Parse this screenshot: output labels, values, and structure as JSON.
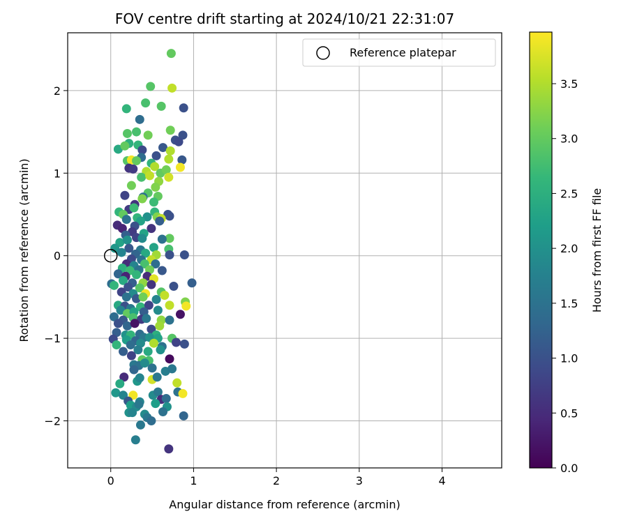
{
  "chart_data": {
    "type": "scatter",
    "title": "FOV centre drift starting at 2024/10/21 22:31:07",
    "xlabel": "Angular distance from reference (arcmin)",
    "ylabel": "Rotation from reference (arcmin)",
    "xlim": [
      -0.52,
      4.72
    ],
    "ylim": [
      -2.57,
      2.7
    ],
    "xticks": [
      0,
      1,
      2,
      3,
      4
    ],
    "yticks": [
      -2,
      -1,
      0,
      1,
      2
    ],
    "grid": true,
    "legend": {
      "placement": "top-right",
      "entries": [
        "Reference platepar"
      ]
    },
    "reference_point": {
      "name": "Reference platepar",
      "x": 0,
      "y": 0
    },
    "colorbar": {
      "label": "Hours from first FF file",
      "colormap": "viridis",
      "range": [
        0.0,
        3.97
      ],
      "ticks": [
        0.0,
        0.5,
        1.0,
        1.5,
        2.0,
        2.5,
        3.0,
        3.5
      ]
    },
    "colormap_stops": [
      "#440154",
      "#482878",
      "#3e4989",
      "#31688e",
      "#26828e",
      "#1f9e89",
      "#35b779",
      "#6ece58",
      "#b5de2b",
      "#fde725"
    ],
    "points": [
      [
        0.73,
        2.45,
        3.0
      ],
      [
        0.48,
        2.05,
        2.9
      ],
      [
        0.74,
        2.03,
        3.6
      ],
      [
        0.42,
        1.85,
        2.8
      ],
      [
        0.61,
        1.81,
        2.9
      ],
      [
        0.19,
        1.78,
        2.6
      ],
      [
        0.88,
        1.79,
        1.0
      ],
      [
        0.35,
        1.65,
        1.4
      ],
      [
        0.31,
        1.5,
        2.8
      ],
      [
        0.72,
        1.52,
        3.1
      ],
      [
        0.2,
        1.48,
        2.9
      ],
      [
        0.45,
        1.46,
        3.1
      ],
      [
        0.87,
        1.46,
        1.0
      ],
      [
        0.78,
        1.4,
        1.0
      ],
      [
        0.82,
        1.38,
        0.9
      ],
      [
        0.22,
        1.36,
        2.5
      ],
      [
        0.09,
        1.29,
        2.4
      ],
      [
        0.33,
        1.34,
        2.6
      ],
      [
        0.17,
        1.33,
        3.0
      ],
      [
        0.38,
        1.28,
        0.9
      ],
      [
        0.63,
        1.31,
        1.1
      ],
      [
        0.72,
        1.27,
        3.5
      ],
      [
        0.55,
        1.21,
        1.0
      ],
      [
        0.37,
        1.19,
        1.4
      ],
      [
        0.86,
        1.16,
        1.1
      ],
      [
        0.2,
        1.15,
        2.9
      ],
      [
        0.25,
        1.16,
        3.9
      ],
      [
        0.31,
        1.15,
        3.0
      ],
      [
        0.49,
        1.12,
        2.6
      ],
      [
        0.7,
        1.17,
        3.5
      ],
      [
        0.53,
        1.08,
        3.5
      ],
      [
        0.22,
        1.06,
        0.6
      ],
      [
        0.27,
        1.05,
        0.7
      ],
      [
        0.43,
        1.02,
        3.5
      ],
      [
        0.6,
        1.0,
        3.0
      ],
      [
        0.84,
        1.07,
        3.9
      ],
      [
        0.67,
        1.04,
        3.1
      ],
      [
        0.37,
        0.95,
        2.8
      ],
      [
        0.47,
        0.97,
        3.6
      ],
      [
        0.7,
        0.95,
        3.7
      ],
      [
        0.58,
        0.9,
        3.3
      ],
      [
        0.25,
        0.85,
        3.1
      ],
      [
        0.54,
        0.83,
        3.2
      ],
      [
        0.45,
        0.76,
        2.9
      ],
      [
        0.17,
        0.73,
        0.8
      ],
      [
        0.39,
        0.71,
        1.5
      ],
      [
        0.38,
        0.69,
        3.2
      ],
      [
        0.57,
        0.72,
        3.0
      ],
      [
        0.52,
        0.65,
        2.7
      ],
      [
        0.29,
        0.62,
        0.6
      ],
      [
        0.22,
        0.56,
        0.7
      ],
      [
        0.28,
        0.58,
        2.7
      ],
      [
        0.1,
        0.53,
        2.6
      ],
      [
        0.15,
        0.5,
        3.0
      ],
      [
        0.53,
        0.53,
        2.6
      ],
      [
        0.69,
        0.5,
        1.0
      ],
      [
        0.71,
        0.48,
        1.0
      ],
      [
        0.32,
        0.46,
        2.6
      ],
      [
        0.56,
        0.47,
        3.2
      ],
      [
        0.61,
        0.45,
        3.6
      ],
      [
        0.44,
        0.47,
        2.0
      ],
      [
        0.19,
        0.44,
        1.5
      ],
      [
        0.36,
        0.42,
        2.3
      ],
      [
        0.59,
        0.42,
        1.2
      ],
      [
        0.08,
        0.37,
        0.5
      ],
      [
        0.14,
        0.33,
        0.4
      ],
      [
        0.29,
        0.36,
        1.0
      ],
      [
        0.49,
        0.33,
        0.6
      ],
      [
        0.26,
        0.29,
        0.7
      ],
      [
        0.4,
        0.27,
        2.3
      ],
      [
        0.18,
        0.25,
        1.2
      ],
      [
        0.31,
        0.22,
        0.8
      ],
      [
        0.71,
        0.21,
        3.0
      ],
      [
        0.11,
        0.16,
        2.3
      ],
      [
        0.2,
        0.19,
        2.0
      ],
      [
        0.38,
        0.21,
        1.9
      ],
      [
        0.62,
        0.2,
        1.5
      ],
      [
        0.05,
        0.09,
        2.1
      ],
      [
        0.22,
        0.09,
        1.1
      ],
      [
        0.36,
        0.07,
        1.6
      ],
      [
        0.52,
        0.1,
        2.3
      ],
      [
        0.7,
        0.08,
        2.8
      ],
      [
        0.13,
        0.04,
        1.8
      ],
      [
        0.3,
        0.02,
        1.3
      ],
      [
        0.42,
        0.03,
        2.4
      ],
      [
        0.55,
        0.01,
        3.4
      ],
      [
        0.71,
        0.01,
        1.0
      ],
      [
        0.89,
        0.01,
        1.0
      ],
      [
        0.25,
        -0.04,
        0.9
      ],
      [
        0.37,
        -0.05,
        1.5
      ],
      [
        0.49,
        -0.05,
        3.6
      ],
      [
        0.19,
        -0.1,
        0.5
      ],
      [
        0.28,
        -0.12,
        1.8
      ],
      [
        0.41,
        -0.1,
        2.8
      ],
      [
        0.54,
        -0.1,
        1.4
      ],
      [
        0.14,
        -0.15,
        2.5
      ],
      [
        0.23,
        -0.18,
        2.7
      ],
      [
        0.34,
        -0.17,
        1.5
      ],
      [
        0.47,
        -0.17,
        3.1
      ],
      [
        0.62,
        -0.18,
        1.1
      ],
      [
        0.09,
        -0.22,
        1.3
      ],
      [
        0.18,
        -0.25,
        0.4
      ],
      [
        0.31,
        -0.23,
        2.6
      ],
      [
        0.44,
        -0.25,
        0.5
      ],
      [
        0.52,
        -0.28,
        3.8
      ],
      [
        0.15,
        -0.3,
        2.4
      ],
      [
        0.26,
        -0.33,
        1.2
      ],
      [
        0.39,
        -0.33,
        3.3
      ],
      [
        0.01,
        -0.34,
        1.4
      ],
      [
        0.04,
        -0.36,
        2.6
      ],
      [
        0.21,
        -0.38,
        1.0
      ],
      [
        0.35,
        -0.39,
        2.9
      ],
      [
        0.49,
        -0.35,
        0.6
      ],
      [
        0.76,
        -0.37,
        1.0
      ],
      [
        0.98,
        -0.33,
        1.2
      ],
      [
        0.13,
        -0.44,
        0.8
      ],
      [
        0.27,
        -0.46,
        1.9
      ],
      [
        0.42,
        -0.46,
        3.9
      ],
      [
        0.61,
        -0.44,
        2.9
      ],
      [
        0.65,
        -0.48,
        3.6
      ],
      [
        0.19,
        -0.5,
        1.5
      ],
      [
        0.31,
        -0.52,
        1.1
      ],
      [
        0.39,
        -0.5,
        3.1
      ],
      [
        0.55,
        -0.53,
        1.8
      ],
      [
        0.09,
        -0.6,
        2.4
      ],
      [
        0.17,
        -0.61,
        1.0
      ],
      [
        0.24,
        -0.64,
        1.6
      ],
      [
        0.36,
        -0.62,
        2.6
      ],
      [
        0.46,
        -0.6,
        0.8
      ],
      [
        0.71,
        -0.6,
        3.6
      ],
      [
        0.9,
        -0.56,
        3.2
      ],
      [
        0.91,
        -0.61,
        3.9
      ],
      [
        0.12,
        -0.66,
        1.8
      ],
      [
        0.2,
        -0.7,
        3.0
      ],
      [
        0.28,
        -0.68,
        2.3
      ],
      [
        0.4,
        -0.68,
        1.2
      ],
      [
        0.57,
        -0.66,
        1.9
      ],
      [
        0.84,
        -0.71,
        0.2
      ],
      [
        0.04,
        -0.74,
        1.4
      ],
      [
        0.15,
        -0.78,
        1.1
      ],
      [
        0.27,
        -0.75,
        2.8
      ],
      [
        0.37,
        -0.77,
        0.7
      ],
      [
        0.43,
        -0.76,
        1.6
      ],
      [
        0.61,
        -0.78,
        3.3
      ],
      [
        0.71,
        -0.78,
        1.5
      ],
      [
        0.09,
        -0.82,
        1.0
      ],
      [
        0.2,
        -0.85,
        1.3
      ],
      [
        0.29,
        -0.82,
        0.2
      ],
      [
        0.49,
        -0.89,
        0.9
      ],
      [
        0.59,
        -0.85,
        3.4
      ],
      [
        0.07,
        -0.93,
        1.2
      ],
      [
        0.18,
        -0.96,
        2.0
      ],
      [
        0.24,
        -0.96,
        2.6
      ],
      [
        0.35,
        -0.95,
        1.4
      ],
      [
        0.55,
        -0.96,
        2.5
      ],
      [
        0.03,
        -1.01,
        0.9
      ],
      [
        0.19,
        -1.02,
        2.2
      ],
      [
        0.3,
        -1.03,
        1.3
      ],
      [
        0.4,
        -0.99,
        1.6
      ],
      [
        0.47,
        -0.99,
        2.0
      ],
      [
        0.57,
        -1.0,
        2.3
      ],
      [
        0.74,
        -1.0,
        2.9
      ],
      [
        0.89,
        -1.07,
        1.0
      ],
      [
        0.07,
        -1.08,
        2.6
      ],
      [
        0.24,
        -1.08,
        1.4
      ],
      [
        0.36,
        -1.06,
        1.9
      ],
      [
        0.52,
        -1.06,
        3.5
      ],
      [
        0.62,
        -1.1,
        1.5
      ],
      [
        0.79,
        -1.05,
        0.8
      ],
      [
        0.15,
        -1.16,
        1.2
      ],
      [
        0.33,
        -1.14,
        1.7
      ],
      [
        0.45,
        -1.16,
        2.4
      ],
      [
        0.6,
        -1.14,
        2.0
      ],
      [
        0.25,
        -1.21,
        0.8
      ],
      [
        0.38,
        -1.26,
        3.0
      ],
      [
        0.46,
        -1.27,
        2.8
      ],
      [
        0.71,
        -1.25,
        0.1
      ],
      [
        0.28,
        -1.32,
        1.6
      ],
      [
        0.34,
        -1.33,
        1.5
      ],
      [
        0.41,
        -1.3,
        1.9
      ],
      [
        0.5,
        -1.36,
        1.5
      ],
      [
        0.28,
        -1.38,
        1.3
      ],
      [
        0.66,
        -1.4,
        1.7
      ],
      [
        0.74,
        -1.37,
        1.6
      ],
      [
        0.16,
        -1.47,
        0.5
      ],
      [
        0.32,
        -1.52,
        2.1
      ],
      [
        0.35,
        -1.48,
        1.8
      ],
      [
        0.5,
        -1.5,
        3.7
      ],
      [
        0.56,
        -1.47,
        1.6
      ],
      [
        0.8,
        -1.54,
        3.6
      ],
      [
        0.11,
        -1.55,
        2.4
      ],
      [
        0.06,
        -1.66,
        2.1
      ],
      [
        0.15,
        -1.69,
        1.8
      ],
      [
        0.27,
        -1.69,
        3.9
      ],
      [
        0.51,
        -1.69,
        1.9
      ],
      [
        0.57,
        -1.65,
        1.6
      ],
      [
        0.81,
        -1.65,
        1.5
      ],
      [
        0.87,
        -1.67,
        3.9
      ],
      [
        0.21,
        -1.76,
        1.1
      ],
      [
        0.35,
        -1.77,
        1.8
      ],
      [
        0.61,
        -1.74,
        0.5
      ],
      [
        0.67,
        -1.73,
        1.4
      ],
      [
        0.24,
        -1.81,
        2.2
      ],
      [
        0.31,
        -1.83,
        1.9
      ],
      [
        0.34,
        -1.8,
        1.6
      ],
      [
        0.54,
        -1.79,
        2.2
      ],
      [
        0.68,
        -1.83,
        2.0
      ],
      [
        0.22,
        -1.9,
        2.0
      ],
      [
        0.26,
        -1.9,
        1.8
      ],
      [
        0.41,
        -1.92,
        1.9
      ],
      [
        0.44,
        -1.96,
        1.6
      ],
      [
        0.63,
        -1.89,
        1.5
      ],
      [
        0.49,
        -2.0,
        1.4
      ],
      [
        0.36,
        -2.05,
        1.6
      ],
      [
        0.88,
        -1.94,
        1.3
      ],
      [
        0.3,
        -2.23,
        1.7
      ],
      [
        0.7,
        -2.34,
        0.6
      ]
    ]
  }
}
